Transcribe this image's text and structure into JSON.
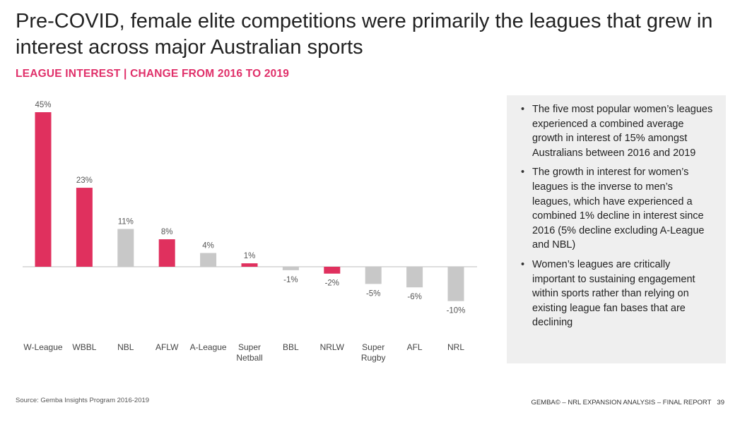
{
  "title": "Pre-COVID, female elite competitions were primarily the leagues that grew in interest across major Australian sports",
  "subtitle": "LEAGUE INTEREST | CHANGE FROM 2016 TO 2019",
  "colors": {
    "female": "#e0305e",
    "male": "#c8c8c8",
    "accent": "#e0306a"
  },
  "chart_data": {
    "type": "bar",
    "title": "LEAGUE INTEREST | CHANGE FROM 2016 TO 2019",
    "xlabel": "",
    "ylabel": "",
    "ylim": [
      -10,
      45
    ],
    "categories": [
      "W-League",
      "WBBL",
      "NBL",
      "AFLW",
      "A-League",
      "Super Netball",
      "BBL",
      "NRLW",
      "Super Rugby",
      "AFL",
      "NRL"
    ],
    "values": [
      45,
      23,
      11,
      8,
      4,
      1,
      -1,
      -2,
      -5,
      -6,
      -10
    ],
    "value_labels": [
      "45%",
      "23%",
      "11%",
      "8%",
      "4%",
      "1%",
      "-1%",
      "-2%",
      "-5%",
      "-6%",
      "-10%"
    ],
    "groups": [
      "female",
      "female",
      "male",
      "female",
      "male",
      "female",
      "male",
      "female",
      "male",
      "male",
      "male"
    ],
    "grid": false
  },
  "panel": {
    "bullets": [
      "The five most popular women’s leagues experienced a combined average growth in interest of 15% amongst Australians between 2016 and 2019",
      "The growth in interest for women’s leagues is the inverse to men’s leagues, which have experienced a combined 1% decline in interest since 2016 (5% decline excluding A-League and NBL)",
      "Women’s leagues are critically important to sustaining engagement within sports rather than relying on existing league fan bases that are declining"
    ]
  },
  "footer": {
    "source": "Source: Gemba Insights Program 2016-2019",
    "report": "GEMBA© – NRL EXPANSION ANALYSIS – FINAL REPORT",
    "page": "39"
  }
}
